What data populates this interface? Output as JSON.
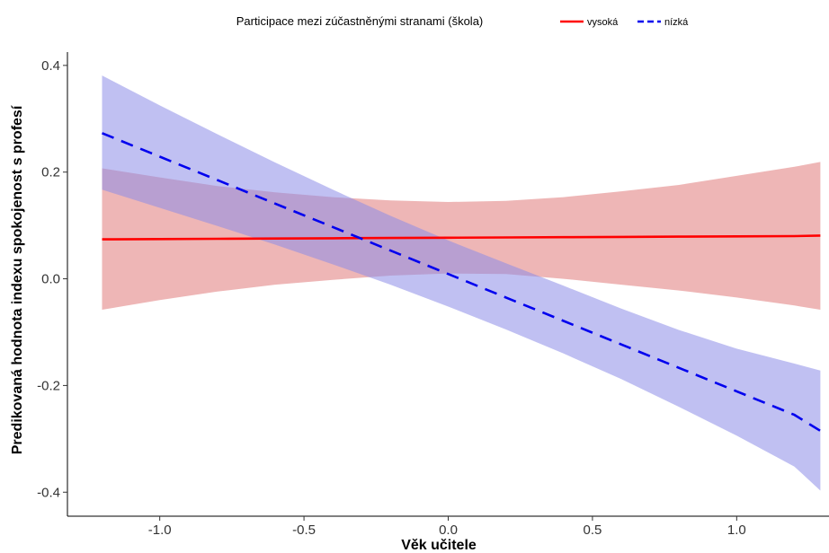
{
  "chart_data": {
    "type": "line",
    "xlabel": "Věk učitele",
    "ylabel": "Predikovaná hodnota indexu spokojenost s profesí",
    "xlim": [
      -1.32,
      1.32
    ],
    "ylim": [
      -0.445,
      0.425
    ],
    "x_ticks": [
      -1.0,
      -0.5,
      0.0,
      0.5,
      1.0
    ],
    "x_tick_labels": [
      "-1.0",
      "-0.5",
      "0.0",
      "0.5",
      "1.0"
    ],
    "y_ticks": [
      -0.4,
      -0.2,
      0.0,
      0.2,
      0.4
    ],
    "y_tick_labels": [
      "-0.4",
      "-0.2",
      "0.0",
      "0.2",
      "0.4"
    ],
    "grid": false,
    "legend": {
      "title": "Participace mezi zúčastněnými stranami (škola)",
      "position": "top"
    },
    "series": [
      {
        "name": "vysoká",
        "color": "#ff0000",
        "ribbon_color": "#e07a7a",
        "line_style": "solid",
        "x": [
          -1.2,
          -1.0,
          -0.8,
          -0.6,
          -0.4,
          -0.2,
          0.0,
          0.2,
          0.4,
          0.6,
          0.8,
          1.0,
          1.2,
          1.29
        ],
        "y": [
          0.074,
          0.0745,
          0.075,
          0.0755,
          0.076,
          0.0765,
          0.077,
          0.0775,
          0.078,
          0.0785,
          0.079,
          0.0795,
          0.08,
          0.081
        ],
        "lower": [
          -0.058,
          -0.04,
          -0.024,
          -0.011,
          -0.002,
          0.006,
          0.01,
          0.009,
          0.0,
          -0.011,
          -0.022,
          -0.035,
          -0.05,
          -0.058
        ],
        "upper": [
          0.207,
          0.19,
          0.174,
          0.162,
          0.153,
          0.147,
          0.144,
          0.146,
          0.153,
          0.164,
          0.176,
          0.193,
          0.21,
          0.219
        ]
      },
      {
        "name": "nízká",
        "color": "#0000ee",
        "ribbon_color": "#8c8ce8",
        "line_style": "dashed",
        "x": [
          -1.2,
          -1.0,
          -0.8,
          -0.6,
          -0.4,
          -0.2,
          0.0,
          0.2,
          0.4,
          0.6,
          0.8,
          1.0,
          1.2,
          1.29
        ],
        "y": [
          0.273,
          0.229,
          0.185,
          0.141,
          0.097,
          0.053,
          0.009,
          -0.035,
          -0.079,
          -0.123,
          -0.167,
          -0.211,
          -0.255,
          -0.285
        ],
        "lower": [
          0.167,
          0.133,
          0.099,
          0.064,
          0.027,
          -0.011,
          -0.052,
          -0.095,
          -0.14,
          -0.188,
          -0.24,
          -0.294,
          -0.352,
          -0.397
        ],
        "upper": [
          0.381,
          0.325,
          0.271,
          0.218,
          0.167,
          0.118,
          0.072,
          0.029,
          -0.013,
          -0.056,
          -0.096,
          -0.131,
          -0.159,
          -0.172
        ]
      }
    ]
  }
}
